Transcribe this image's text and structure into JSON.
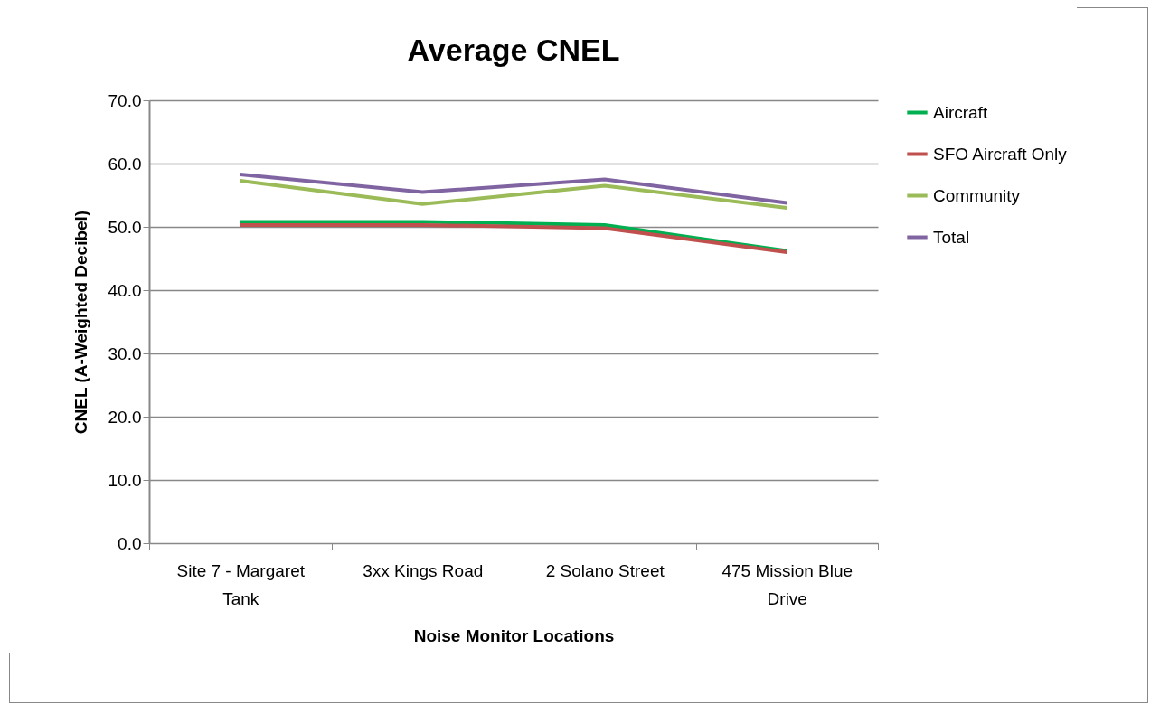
{
  "chart_data": {
    "type": "line",
    "title": "Average CNEL",
    "xlabel": "Noise Monitor Locations",
    "ylabel": "CNEL (A-Weighted Decibel)",
    "categories": [
      "Site 7 - Margaret Tank",
      "3xx Kings Road",
      "2 Solano Street",
      "475 Mission Blue Drive"
    ],
    "series": [
      {
        "name": "Aircraft",
        "color": "#00b050",
        "values": [
          50.8,
          50.8,
          50.3,
          46.2
        ]
      },
      {
        "name": "SFO Aircraft Only",
        "color": "#c0504d",
        "values": [
          50.3,
          50.3,
          49.8,
          46.0
        ]
      },
      {
        "name": "Community",
        "color": "#9bbb59",
        "values": [
          57.3,
          53.6,
          56.5,
          53.0
        ]
      },
      {
        "name": "Total",
        "color": "#8064a2",
        "values": [
          58.3,
          55.5,
          57.5,
          53.8
        ]
      }
    ],
    "ylim": [
      0,
      70
    ],
    "yticks": [
      {
        "value": 0,
        "label": "0.0"
      },
      {
        "value": 10,
        "label": "10.0"
      },
      {
        "value": 20,
        "label": "20.0"
      },
      {
        "value": 30,
        "label": "30.0"
      },
      {
        "value": 40,
        "label": "40.0"
      },
      {
        "value": 50,
        "label": "50.0"
      },
      {
        "value": 60,
        "label": "60.0"
      },
      {
        "value": 70,
        "label": "70.0"
      }
    ],
    "grid": "y",
    "legend": "right",
    "marker": "none",
    "line_style": "solid"
  }
}
